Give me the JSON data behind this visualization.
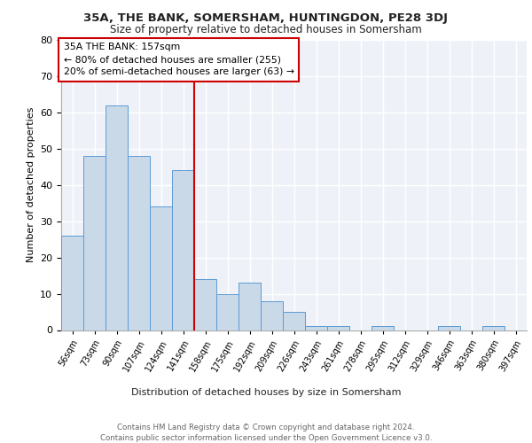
{
  "title1": "35A, THE BANK, SOMERSHAM, HUNTINGDON, PE28 3DJ",
  "title2": "Size of property relative to detached houses in Somersham",
  "xlabel": "Distribution of detached houses by size in Somersham",
  "ylabel": "Number of detached properties",
  "footer": "Contains HM Land Registry data © Crown copyright and database right 2024.\nContains public sector information licensed under the Open Government Licence v3.0.",
  "bin_labels": [
    "56sqm",
    "73sqm",
    "90sqm",
    "107sqm",
    "124sqm",
    "141sqm",
    "158sqm",
    "175sqm",
    "192sqm",
    "209sqm",
    "226sqm",
    "243sqm",
    "261sqm",
    "278sqm",
    "295sqm",
    "312sqm",
    "329sqm",
    "346sqm",
    "363sqm",
    "380sqm",
    "397sqm"
  ],
  "bar_values": [
    26,
    48,
    62,
    48,
    34,
    44,
    14,
    10,
    13,
    8,
    5,
    1,
    1,
    0,
    1,
    0,
    0,
    1,
    0,
    1,
    0
  ],
  "bar_color": "#c9d9e8",
  "bar_edge_color": "#5b9bd5",
  "vline_x": 6,
  "vline_color": "#cc0000",
  "annotation_text": "35A THE BANK: 157sqm\n← 80% of detached houses are smaller (255)\n20% of semi-detached houses are larger (63) →",
  "annotation_box_color": "#cc0000",
  "ylim": [
    0,
    80
  ],
  "yticks": [
    0,
    10,
    20,
    30,
    40,
    50,
    60,
    70,
    80
  ],
  "background_color": "#eef2f8",
  "plot_background": "#eef2f8",
  "fig_background": "#ffffff"
}
